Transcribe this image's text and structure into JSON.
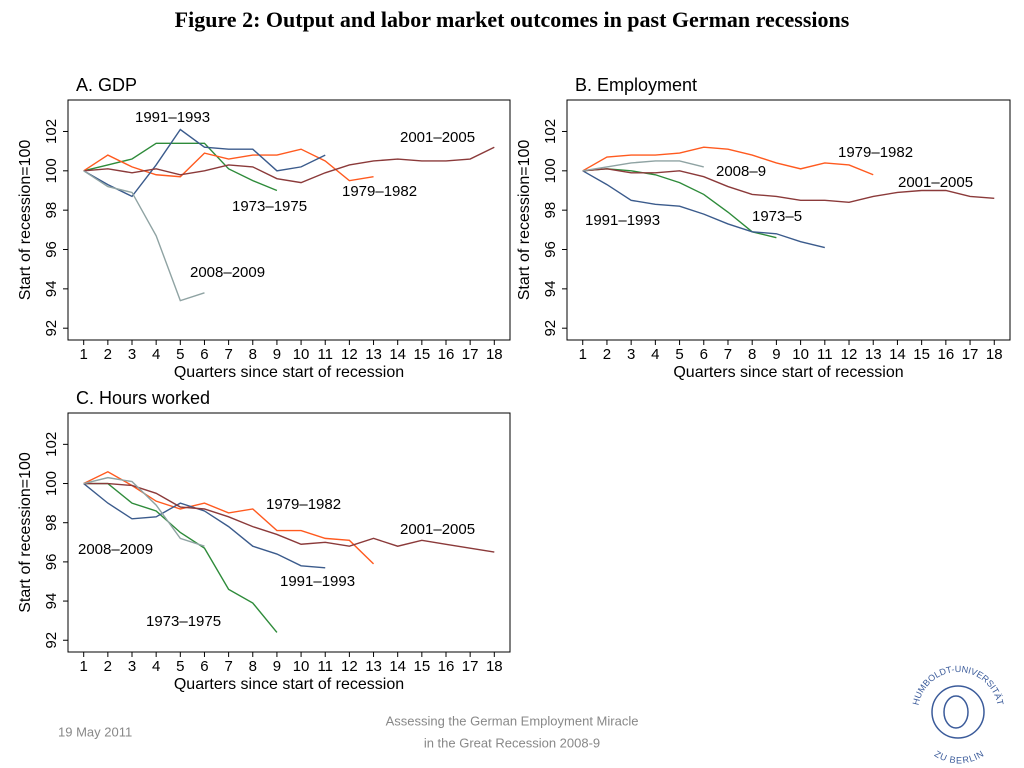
{
  "title": "Figure 2: Output and labor market outcomes in past German recessions",
  "footer": {
    "date": "19 May 2011",
    "caption_line1": "Assessing the German Employment Miracle",
    "caption_line2": "in the Great Recession 2008-9",
    "logo_top": "HUMBOLDT-UNIVERSITÄT",
    "logo_bottom": "ZU BERLIN"
  },
  "chart_data": [
    {
      "type": "line",
      "title": "A. GDP",
      "xlabel": "Quarters since start of recession",
      "ylabel": "Start of recession=100",
      "x": [
        1,
        2,
        3,
        4,
        5,
        6,
        7,
        8,
        9,
        10,
        11,
        12,
        13,
        14,
        15,
        16,
        17,
        18
      ],
      "xlim": [
        0.35,
        18.65
      ],
      "xticks": [
        1,
        2,
        3,
        4,
        5,
        6,
        7,
        8,
        9,
        10,
        11,
        12,
        13,
        14,
        15,
        16,
        17,
        18
      ],
      "ylim": [
        91.4,
        103.6
      ],
      "yticks": [
        92,
        94,
        96,
        98,
        100,
        102
      ],
      "series": [
        {
          "name": "1973–1975",
          "color": "#2e8b3a",
          "values": [
            100,
            100.3,
            100.6,
            101.4,
            101.4,
            101.4,
            100.1,
            99.5,
            99.0,
            null,
            null,
            null,
            null,
            null,
            null,
            null,
            null,
            null
          ]
        },
        {
          "name": "1979–1982",
          "color": "#ff5a1f",
          "values": [
            100,
            100.8,
            100.2,
            99.8,
            99.7,
            100.9,
            100.6,
            100.8,
            100.8,
            101.1,
            100.5,
            99.5,
            99.7,
            null,
            null,
            null,
            null,
            null
          ]
        },
        {
          "name": "1991–1993",
          "color": "#3b5b8c",
          "values": [
            100,
            99.3,
            98.7,
            100.3,
            102.1,
            101.2,
            101.1,
            101.1,
            100.0,
            100.2,
            100.8,
            null,
            null,
            null,
            null,
            null,
            null,
            null
          ]
        },
        {
          "name": "2001–2005",
          "color": "#8b3a3a",
          "values": [
            100,
            100.1,
            99.9,
            100.1,
            99.8,
            100.0,
            100.3,
            100.2,
            99.6,
            99.4,
            99.9,
            100.3,
            100.5,
            100.6,
            100.5,
            100.5,
            100.6,
            101.2
          ]
        },
        {
          "name": "2008–2009",
          "color": "#8fa3a3",
          "values": [
            100,
            99.2,
            98.9,
            96.7,
            93.4,
            93.8,
            null,
            null,
            null,
            null,
            null,
            null,
            null,
            null,
            null,
            null,
            null,
            null
          ]
        }
      ]
    },
    {
      "type": "line",
      "title": "B. Employment",
      "xlabel": "Quarters since start of recession",
      "ylabel": "Start of recession=100",
      "x": [
        1,
        2,
        3,
        4,
        5,
        6,
        7,
        8,
        9,
        10,
        11,
        12,
        13,
        14,
        15,
        16,
        17,
        18
      ],
      "xlim": [
        0.35,
        18.65
      ],
      "xticks": [
        1,
        2,
        3,
        4,
        5,
        6,
        7,
        8,
        9,
        10,
        11,
        12,
        13,
        14,
        15,
        16,
        17,
        18
      ],
      "ylim": [
        91.4,
        103.6
      ],
      "yticks": [
        92,
        94,
        96,
        98,
        100,
        102
      ],
      "series": [
        {
          "name": "1973–5",
          "color": "#2e8b3a",
          "values": [
            100,
            100.1,
            100.0,
            99.8,
            99.4,
            98.8,
            97.9,
            96.9,
            96.6,
            null,
            null,
            null,
            null,
            null,
            null,
            null,
            null,
            null
          ]
        },
        {
          "name": "1979–1982",
          "color": "#ff5a1f",
          "values": [
            100,
            100.7,
            100.8,
            100.8,
            100.9,
            101.2,
            101.1,
            100.8,
            100.4,
            100.1,
            100.4,
            100.3,
            99.8,
            null,
            null,
            null,
            null,
            null
          ]
        },
        {
          "name": "1991–1993",
          "color": "#3b5b8c",
          "values": [
            100,
            99.3,
            98.5,
            98.3,
            98.2,
            97.8,
            97.3,
            96.9,
            96.8,
            96.4,
            96.1,
            null,
            null,
            null,
            null,
            null,
            null,
            null
          ]
        },
        {
          "name": "2001–2005",
          "color": "#8b3a3a",
          "values": [
            100,
            100.1,
            99.9,
            99.9,
            100.0,
            99.7,
            99.2,
            98.8,
            98.7,
            98.5,
            98.5,
            98.4,
            98.7,
            98.9,
            99.0,
            99.0,
            98.7,
            98.6
          ]
        },
        {
          "name": "2008–9",
          "color": "#8fa3a3",
          "values": [
            100,
            100.2,
            100.4,
            100.5,
            100.5,
            100.2,
            null,
            null,
            null,
            null,
            null,
            null,
            null,
            null,
            null,
            null,
            null,
            null
          ]
        }
      ]
    },
    {
      "type": "line",
      "title": "C. Hours worked",
      "xlabel": "Quarters since start of recession",
      "ylabel": "Start of recession=100",
      "x": [
        1,
        2,
        3,
        4,
        5,
        6,
        7,
        8,
        9,
        10,
        11,
        12,
        13,
        14,
        15,
        16,
        17,
        18
      ],
      "xlim": [
        0.35,
        18.65
      ],
      "xticks": [
        1,
        2,
        3,
        4,
        5,
        6,
        7,
        8,
        9,
        10,
        11,
        12,
        13,
        14,
        15,
        16,
        17,
        18
      ],
      "ylim": [
        91.4,
        103.6
      ],
      "yticks": [
        92,
        94,
        96,
        98,
        100,
        102
      ],
      "series": [
        {
          "name": "1973–1975",
          "color": "#2e8b3a",
          "values": [
            100,
            100.0,
            99.0,
            98.6,
            97.5,
            96.7,
            94.6,
            93.9,
            92.4,
            null,
            null,
            null,
            null,
            null,
            null,
            null,
            null,
            null
          ]
        },
        {
          "name": "1979–1982",
          "color": "#ff5a1f",
          "values": [
            100,
            100.6,
            99.9,
            99.1,
            98.7,
            99.0,
            98.5,
            98.7,
            97.6,
            97.6,
            97.2,
            97.1,
            95.9,
            null,
            null,
            null,
            null,
            null
          ]
        },
        {
          "name": "1991–1993",
          "color": "#3b5b8c",
          "values": [
            100,
            99.0,
            98.2,
            98.3,
            99.0,
            98.6,
            97.8,
            96.8,
            96.4,
            95.8,
            95.7,
            null,
            null,
            null,
            null,
            null,
            null,
            null
          ]
        },
        {
          "name": "2001–2005",
          "color": "#8b3a3a",
          "values": [
            100,
            100.0,
            99.9,
            99.5,
            98.8,
            98.7,
            98.3,
            97.8,
            97.4,
            96.9,
            97.0,
            96.8,
            97.2,
            96.8,
            97.1,
            96.9,
            96.7,
            96.5
          ]
        },
        {
          "name": "2008–2009",
          "color": "#8fa3a3",
          "values": [
            100,
            100.3,
            100.1,
            98.9,
            97.2,
            96.8,
            null,
            null,
            null,
            null,
            null,
            null,
            null,
            null,
            null,
            null,
            null,
            null
          ]
        }
      ]
    }
  ]
}
